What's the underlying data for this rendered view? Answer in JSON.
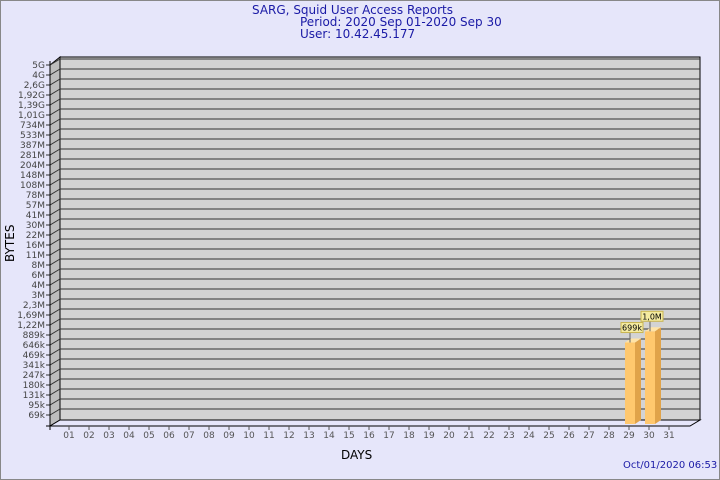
{
  "chart_data": {
    "type": "bar",
    "title": "SARG, Squid User Access Reports",
    "subtitle_period": "Period: 2020 Sep 01-2020 Sep 30",
    "subtitle_user": "User: 10.42.45.177",
    "xlabel": "DAYS",
    "ylabel": "BYTES",
    "y_scale": "log",
    "grid": true,
    "y_ticks": [
      {
        "label": "5G",
        "value": 5000000000
      },
      {
        "label": "4G",
        "value": 4000000000
      },
      {
        "label": "2,6G",
        "value": 2600000000
      },
      {
        "label": "1,92G",
        "value": 1920000000
      },
      {
        "label": "1,39G",
        "value": 1390000000
      },
      {
        "label": "1,01G",
        "value": 1010000000
      },
      {
        "label": "734M",
        "value": 734000000
      },
      {
        "label": "533M",
        "value": 533000000
      },
      {
        "label": "387M",
        "value": 387000000
      },
      {
        "label": "281M",
        "value": 281000000
      },
      {
        "label": "204M",
        "value": 204000000
      },
      {
        "label": "148M",
        "value": 148000000
      },
      {
        "label": "108M",
        "value": 108000000
      },
      {
        "label": "78M",
        "value": 78000000
      },
      {
        "label": "57M",
        "value": 57000000
      },
      {
        "label": "41M",
        "value": 41000000
      },
      {
        "label": "30M",
        "value": 30000000
      },
      {
        "label": "22M",
        "value": 22000000
      },
      {
        "label": "16M",
        "value": 16000000
      },
      {
        "label": "11M",
        "value": 11000000
      },
      {
        "label": "8M",
        "value": 8000000
      },
      {
        "label": "6M",
        "value": 6000000
      },
      {
        "label": "4M",
        "value": 4000000
      },
      {
        "label": "3M",
        "value": 3000000
      },
      {
        "label": "2,3M",
        "value": 2300000
      },
      {
        "label": "1,69M",
        "value": 1690000
      },
      {
        "label": "1,22M",
        "value": 1220000
      },
      {
        "label": "889k",
        "value": 889000
      },
      {
        "label": "646k",
        "value": 646000
      },
      {
        "label": "469k",
        "value": 469000
      },
      {
        "label": "341k",
        "value": 341000
      },
      {
        "label": "247k",
        "value": 247000
      },
      {
        "label": "180k",
        "value": 180000
      },
      {
        "label": "131k",
        "value": 131000
      },
      {
        "label": "95k",
        "value": 95000
      },
      {
        "label": "69k",
        "value": 69000
      }
    ],
    "categories": [
      "01",
      "02",
      "03",
      "04",
      "05",
      "06",
      "07",
      "08",
      "09",
      "10",
      "11",
      "12",
      "13",
      "14",
      "15",
      "16",
      "17",
      "18",
      "19",
      "20",
      "21",
      "22",
      "23",
      "24",
      "25",
      "26",
      "27",
      "28",
      "29",
      "30",
      "31"
    ],
    "bars": [
      {
        "day": "29",
        "value": 699000,
        "label": "699k"
      },
      {
        "day": "30",
        "value": 1000000,
        "label": "1,0M"
      }
    ],
    "colors": {
      "bar_front": "#ffc86e",
      "bar_side": "#e0a34a",
      "bar_top": "#ffe4a8",
      "wall": "#d3d3d3",
      "title": "#1a1aa6"
    }
  },
  "footer": {
    "timestamp": "Oct/01/2020 06:53"
  }
}
